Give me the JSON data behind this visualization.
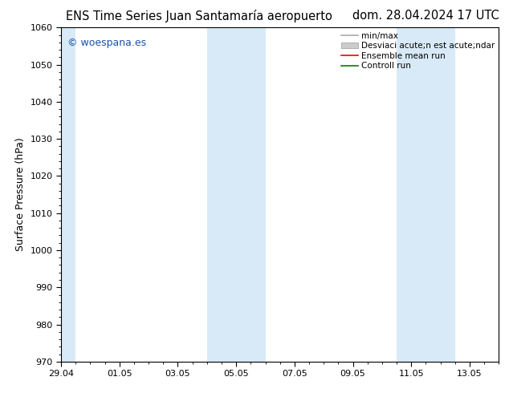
{
  "title_left": "ENS Time Series Juan Santamaría aeropuerto",
  "title_right": "dom. 28.04.2024 17 UTC",
  "ylabel": "Surface Pressure (hPa)",
  "ylim": [
    970,
    1060
  ],
  "yticks": [
    970,
    980,
    990,
    1000,
    1010,
    1020,
    1030,
    1040,
    1050,
    1060
  ],
  "xtick_labels": [
    "29.04",
    "01.05",
    "03.05",
    "05.05",
    "07.05",
    "09.05",
    "11.05",
    "13.05"
  ],
  "xtick_positions": [
    0,
    2,
    4,
    6,
    8,
    10,
    12,
    14
  ],
  "xlim": [
    0,
    15
  ],
  "watermark": "© woespana.es",
  "watermark_color": "#1a52a8",
  "shaded_regions": [
    {
      "start": -0.04,
      "end": 0.5
    },
    {
      "start": 5.0,
      "end": 7.0
    },
    {
      "start": 11.5,
      "end": 13.5
    }
  ],
  "shaded_color": "#d8eaf7",
  "background_color": "#ffffff",
  "legend_line1_label": "min/max",
  "legend_line1_color": "#aaaaaa",
  "legend_band_label": "Desviaci acute;n est acute;ndar",
  "legend_band_color": "#cccccc",
  "legend_line2_label": "Ensemble mean run",
  "legend_line2_color": "#ff0000",
  "legend_line3_label": "Controll run",
  "legend_line3_color": "#008000",
  "spine_color": "#000000",
  "tick_color": "#000000",
  "title_fontsize": 10.5,
  "label_fontsize": 9,
  "tick_fontsize": 8,
  "legend_fontsize": 7.5,
  "watermark_fontsize": 9
}
